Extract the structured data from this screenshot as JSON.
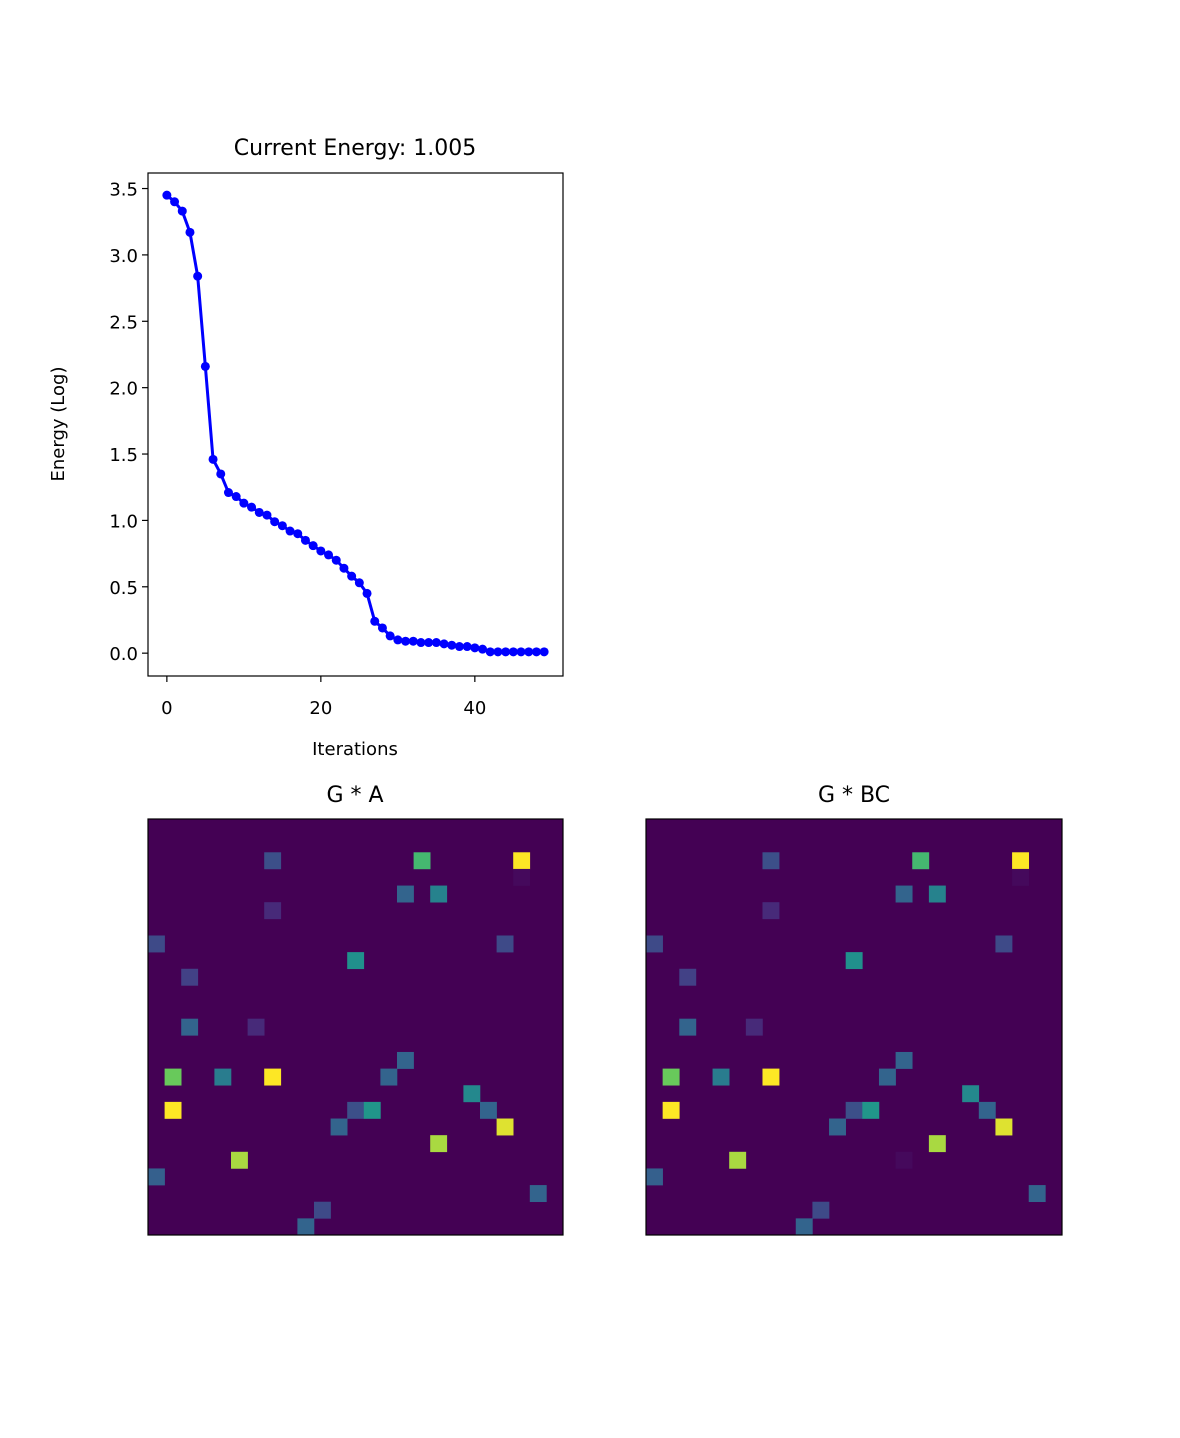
{
  "chart_data": [
    {
      "type": "line",
      "title": "Current Energy: 1.005",
      "xlabel": "Iterations",
      "ylabel": "Energy (Log)",
      "xlim": [
        -2.45,
        51.45
      ],
      "ylim": [
        -0.172,
        3.617
      ],
      "xticks": [
        0,
        20,
        40
      ],
      "xtick_labels": [
        "0",
        "20",
        "40"
      ],
      "yticks": [
        0.0,
        0.5,
        1.0,
        1.5,
        2.0,
        2.5,
        3.0,
        3.5
      ],
      "ytick_labels": [
        "0.0",
        "0.5",
        "1.0",
        "1.5",
        "2.0",
        "2.5",
        "3.0",
        "3.5"
      ],
      "grid": false,
      "series": [
        {
          "color": "#0000ff",
          "marker": "circle",
          "x": [
            0,
            1,
            2,
            3,
            4,
            5,
            6,
            7,
            8,
            9,
            10,
            11,
            12,
            13,
            14,
            15,
            16,
            17,
            18,
            19,
            20,
            21,
            22,
            23,
            24,
            25,
            26,
            27,
            28,
            29,
            30,
            31,
            32,
            33,
            34,
            35,
            36,
            37,
            38,
            39,
            40,
            41,
            42,
            43,
            44,
            45,
            46,
            47,
            48,
            49
          ],
          "y": [
            3.45,
            3.4,
            3.33,
            3.17,
            2.84,
            2.16,
            1.46,
            1.35,
            1.21,
            1.18,
            1.13,
            1.1,
            1.06,
            1.04,
            0.99,
            0.96,
            0.92,
            0.9,
            0.85,
            0.81,
            0.77,
            0.74,
            0.7,
            0.64,
            0.58,
            0.53,
            0.45,
            0.24,
            0.19,
            0.13,
            0.1,
            0.09,
            0.09,
            0.08,
            0.08,
            0.08,
            0.07,
            0.06,
            0.05,
            0.05,
            0.04,
            0.03,
            0.01,
            0.01,
            0.01,
            0.01,
            0.01,
            0.01,
            0.01,
            0.01
          ]
        }
      ]
    },
    {
      "type": "heatmap",
      "title": "G * A",
      "colormap": "viridis",
      "background_color": "#440154",
      "rows": 25,
      "cols": 25,
      "cells": [
        {
          "r": 2,
          "c": 7,
          "v": 0.3
        },
        {
          "r": 2,
          "c": 16,
          "v": 0.8
        },
        {
          "r": 2,
          "c": 22,
          "v": 1.0
        },
        {
          "r": 3,
          "c": 22,
          "v": 0.03
        },
        {
          "r": 4,
          "c": 15,
          "v": 0.4
        },
        {
          "r": 4,
          "c": 17,
          "v": 0.55
        },
        {
          "r": 5,
          "c": 7,
          "v": 0.15
        },
        {
          "r": 7,
          "c": 0,
          "v": 0.28
        },
        {
          "r": 7,
          "c": 21,
          "v": 0.28
        },
        {
          "r": 8,
          "c": 12,
          "v": 0.62
        },
        {
          "r": 9,
          "c": 2,
          "v": 0.24
        },
        {
          "r": 12,
          "c": 2,
          "v": 0.4
        },
        {
          "r": 12,
          "c": 6,
          "v": 0.15
        },
        {
          "r": 14,
          "c": 15,
          "v": 0.4
        },
        {
          "r": 15,
          "c": 1,
          "v": 0.85
        },
        {
          "r": 15,
          "c": 4,
          "v": 0.52
        },
        {
          "r": 15,
          "c": 7,
          "v": 1.0
        },
        {
          "r": 15,
          "c": 14,
          "v": 0.4
        },
        {
          "r": 16,
          "c": 19,
          "v": 0.58
        },
        {
          "r": 17,
          "c": 1,
          "v": 1.0
        },
        {
          "r": 17,
          "c": 12,
          "v": 0.3
        },
        {
          "r": 17,
          "c": 13,
          "v": 0.65
        },
        {
          "r": 17,
          "c": 20,
          "v": 0.4
        },
        {
          "r": 18,
          "c": 11,
          "v": 0.4
        },
        {
          "r": 18,
          "c": 21,
          "v": 0.97
        },
        {
          "r": 19,
          "c": 17,
          "v": 0.92
        },
        {
          "r": 20,
          "c": 5,
          "v": 0.92
        },
        {
          "r": 21,
          "c": 0,
          "v": 0.38
        },
        {
          "r": 22,
          "c": 23,
          "v": 0.4
        },
        {
          "r": 23,
          "c": 10,
          "v": 0.28
        },
        {
          "r": 24,
          "c": 9,
          "v": 0.4
        }
      ]
    },
    {
      "type": "heatmap",
      "title": "G * BC",
      "colormap": "viridis",
      "background_color": "#440154",
      "rows": 25,
      "cols": 25,
      "cells": [
        {
          "r": 2,
          "c": 7,
          "v": 0.3
        },
        {
          "r": 2,
          "c": 16,
          "v": 0.8
        },
        {
          "r": 2,
          "c": 22,
          "v": 1.0
        },
        {
          "r": 3,
          "c": 22,
          "v": 0.03
        },
        {
          "r": 4,
          "c": 15,
          "v": 0.4
        },
        {
          "r": 4,
          "c": 17,
          "v": 0.55
        },
        {
          "r": 5,
          "c": 7,
          "v": 0.15
        },
        {
          "r": 7,
          "c": 0,
          "v": 0.28
        },
        {
          "r": 7,
          "c": 21,
          "v": 0.28
        },
        {
          "r": 8,
          "c": 12,
          "v": 0.62
        },
        {
          "r": 9,
          "c": 2,
          "v": 0.24
        },
        {
          "r": 12,
          "c": 2,
          "v": 0.4
        },
        {
          "r": 12,
          "c": 6,
          "v": 0.15
        },
        {
          "r": 14,
          "c": 15,
          "v": 0.4
        },
        {
          "r": 15,
          "c": 1,
          "v": 0.85
        },
        {
          "r": 15,
          "c": 4,
          "v": 0.52
        },
        {
          "r": 15,
          "c": 7,
          "v": 1.0
        },
        {
          "r": 15,
          "c": 14,
          "v": 0.4
        },
        {
          "r": 16,
          "c": 19,
          "v": 0.58
        },
        {
          "r": 17,
          "c": 1,
          "v": 1.0
        },
        {
          "r": 17,
          "c": 12,
          "v": 0.3
        },
        {
          "r": 17,
          "c": 13,
          "v": 0.65
        },
        {
          "r": 17,
          "c": 20,
          "v": 0.4
        },
        {
          "r": 18,
          "c": 11,
          "v": 0.4
        },
        {
          "r": 18,
          "c": 21,
          "v": 0.97
        },
        {
          "r": 19,
          "c": 17,
          "v": 0.92
        },
        {
          "r": 20,
          "c": 5,
          "v": 0.92
        },
        {
          "r": 20,
          "c": 15,
          "v": 0.03
        },
        {
          "r": 21,
          "c": 0,
          "v": 0.38
        },
        {
          "r": 22,
          "c": 23,
          "v": 0.4
        },
        {
          "r": 23,
          "c": 10,
          "v": 0.28
        },
        {
          "r": 24,
          "c": 9,
          "v": 0.4
        }
      ]
    }
  ]
}
